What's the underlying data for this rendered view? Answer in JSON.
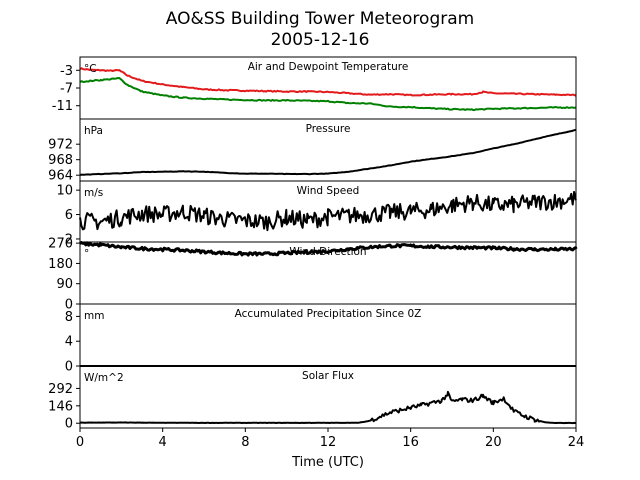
{
  "chart_data": {
    "type": "line",
    "title": "AO&SS Building Tower Meteorogram",
    "subtitle": "2005-12-16",
    "xlabel": "Time (UTC)",
    "xlim": [
      0,
      24
    ],
    "xticks": [
      0,
      4,
      8,
      12,
      16,
      20,
      24
    ],
    "panels": [
      {
        "title": "Air and Dewpoint Temperature",
        "unit": "°C",
        "ylim": [
          -14,
          0
        ],
        "yticks": [
          -3,
          -7,
          -11
        ],
        "series": [
          {
            "color": "#e31a1c",
            "x": [
              0,
              0.5,
              1,
              1.5,
              1.9,
              2.3,
              3,
              4,
              5,
              6,
              7,
              8,
              9,
              10,
              11,
              12,
              13,
              14,
              15,
              16,
              17,
              18,
              19,
              19.5,
              20,
              21,
              22,
              23,
              24
            ],
            "values": [
              -2.6,
              -2.9,
              -3.0,
              -3.1,
              -3.0,
              -4.2,
              -5.4,
              -6.2,
              -6.8,
              -7.3,
              -7.5,
              -7.6,
              -7.7,
              -7.8,
              -7.8,
              -7.9,
              -8.2,
              -8.5,
              -8.4,
              -8.6,
              -8.5,
              -8.4,
              -8.4,
              -7.9,
              -8.2,
              -8.3,
              -8.4,
              -8.5,
              -8.6
            ]
          },
          {
            "color": "#008000",
            "x": [
              0,
              0.5,
              1,
              1.5,
              1.9,
              2.3,
              3,
              4,
              5,
              6,
              7,
              8,
              9,
              10,
              11,
              12,
              13,
              14,
              15,
              16,
              17,
              18,
              19,
              20,
              21,
              22,
              23,
              24
            ],
            "values": [
              -5.6,
              -5.4,
              -5.2,
              -5.0,
              -4.8,
              -6.3,
              -7.8,
              -8.7,
              -9.2,
              -9.4,
              -9.6,
              -9.7,
              -9.8,
              -9.8,
              -9.9,
              -10.0,
              -10.4,
              -10.5,
              -11.2,
              -11.3,
              -11.6,
              -11.8,
              -11.9,
              -11.7,
              -11.6,
              -11.5,
              -11.4,
              -11.4
            ]
          }
        ]
      },
      {
        "title": "Pressure",
        "unit": "hPa",
        "ylim": [
          962.5,
          978.5
        ],
        "yticks": [
          964,
          968,
          972
        ],
        "series": [
          {
            "color": "#000000",
            "x": [
              0,
              1,
              2,
              3,
              4,
              5,
              6,
              7,
              8,
              9,
              10,
              11,
              12,
              13,
              14,
              15,
              16,
              17,
              18,
              19,
              20,
              21,
              22,
              23,
              24
            ],
            "values": [
              964.1,
              964.3,
              964.5,
              964.8,
              964.9,
              965.0,
              964.9,
              964.6,
              964.4,
              964.4,
              964.3,
              964.3,
              964.4,
              964.9,
              965.7,
              966.5,
              967.5,
              968.2,
              968.9,
              969.7,
              970.9,
              972.0,
              973.3,
              974.5,
              975.7
            ]
          }
        ]
      },
      {
        "title": "Wind Speed",
        "unit": "m/s",
        "ylim": [
          1.5,
          11.5
        ],
        "yticks": [
          2,
          6,
          10
        ],
        "series": [
          {
            "color": "#000000",
            "x": [
              0,
              1,
              2,
              3,
              4,
              5,
              6,
              7,
              8,
              9,
              10,
              11,
              12,
              13,
              14,
              15,
              16,
              17,
              18,
              19,
              20,
              21,
              22,
              23,
              24
            ],
            "values": [
              5.0,
              4.8,
              5.5,
              6.2,
              6.0,
              6.5,
              5.8,
              5.2,
              5.0,
              4.8,
              5.5,
              5.0,
              5.6,
              5.8,
              6.0,
              6.3,
              6.5,
              6.8,
              7.5,
              8.0,
              7.5,
              7.6,
              8.0,
              8.2,
              8.6
            ]
          }
        ]
      },
      {
        "title": "Wind Direction",
        "unit": "°",
        "ylim": [
          0,
          275
        ],
        "yticks": [
          0,
          90,
          180,
          270
        ],
        "series": [
          {
            "color": "#000000",
            "x": [
              0,
              1,
              2,
              3,
              4,
              5,
              6,
              7,
              8,
              9,
              10,
              11,
              12,
              13,
              14,
              15,
              16,
              17,
              18,
              19,
              20,
              21,
              22,
              23,
              24
            ],
            "values": [
              268,
              262,
              252,
              246,
              242,
              238,
              232,
              226,
              222,
              222,
              226,
              230,
              234,
              244,
              252,
              258,
              258,
              254,
              252,
              250,
              248,
              244,
              242,
              242,
              244
            ]
          }
        ]
      },
      {
        "title": "Accumulated Precipitation Since 0Z",
        "unit": "mm",
        "ylim": [
          0,
          10
        ],
        "yticks": [
          0,
          4,
          8
        ],
        "series": [
          {
            "color": "#000000",
            "x": [
              0,
              24
            ],
            "values": [
              0,
              0
            ]
          }
        ]
      },
      {
        "title": "Solar Flux",
        "unit": "W/m^2",
        "ylim": [
          -40,
          480
        ],
        "yticks": [
          0,
          146,
          292
        ],
        "series": [
          {
            "color": "#000000",
            "x": [
              0,
              2,
              4,
              6,
              8,
              10,
              12,
              13.5,
              14,
              14.5,
              15,
              15.5,
              16,
              16.5,
              17,
              17.5,
              17.8,
              18,
              18.5,
              19,
              19.5,
              20,
              20.5,
              21,
              21.5,
              22,
              22.5,
              23,
              24
            ],
            "values": [
              5,
              6,
              4,
              3,
              3,
              3,
              3,
              4,
              20,
              55,
              90,
              110,
              130,
              150,
              170,
              190,
              245,
              180,
              200,
              190,
              230,
              170,
              210,
              100,
              60,
              30,
              8,
              2,
              2
            ]
          }
        ]
      }
    ]
  }
}
